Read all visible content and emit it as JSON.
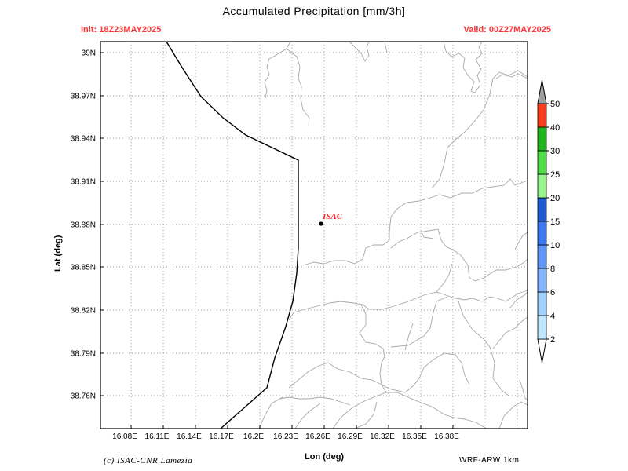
{
  "header": {
    "title": "Accumulated Precipitation [mm/3h]",
    "init": "Init: 18Z23MAY2025",
    "valid": "Valid: 00Z27MAY2025"
  },
  "axes": {
    "xlabel": "Lon (deg)",
    "ylabel": "Lat (deg)",
    "x_ticks": [
      "16.08E",
      "16.11E",
      "16.14E",
      "16.17E",
      "16.2E",
      "16.23E",
      "16.26E",
      "16.29E",
      "16.32E",
      "16.35E",
      "16.38E"
    ],
    "y_ticks": [
      "39N",
      "38.97N",
      "38.94N",
      "38.91N",
      "38.88N",
      "38.85N",
      "38.82N",
      "38.79N",
      "38.76N"
    ]
  },
  "map": {
    "marker_label": "ISAC"
  },
  "colorbar": {
    "labels": [
      "2",
      "4",
      "6",
      "8",
      "10",
      "15",
      "20",
      "25",
      "30",
      "40",
      "50"
    ],
    "colors": [
      "#e0fffe",
      "#bfe8ff",
      "#a0d2ff",
      "#82b4ff",
      "#5f96f5",
      "#3c78f0",
      "#1e5ad2",
      "#96f58c",
      "#50dc46",
      "#1eb41e",
      "#fa3c1e"
    ],
    "over_color": "#a0a0a0"
  },
  "footer": {
    "credit": "(c) ISAC-CNR Lamezia",
    "model": "WRF-ARW 1km"
  }
}
